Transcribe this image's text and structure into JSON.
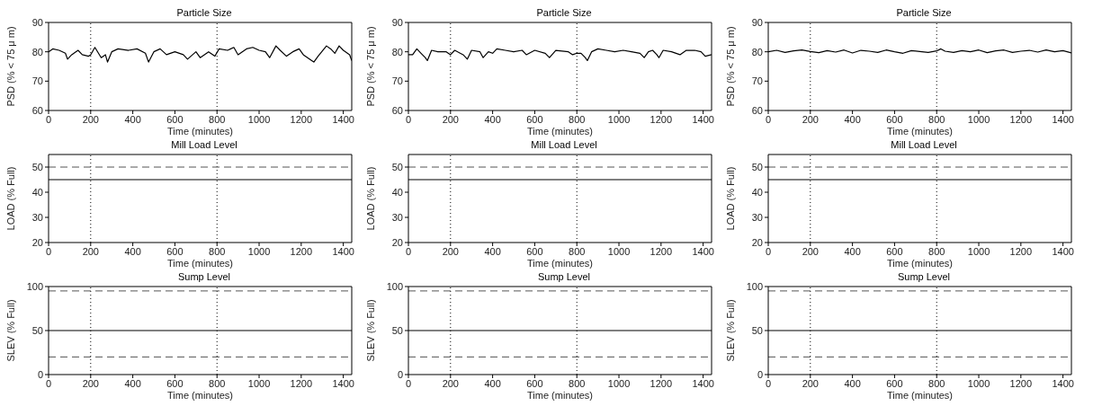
{
  "chart_data": [
    {
      "type": "line",
      "title": "Particle Size",
      "xlabel": "Time (minutes)",
      "ylabel": "PSD (% < 75 μ m)",
      "xlim": [
        0,
        1440
      ],
      "xticks": [
        0,
        200,
        400,
        600,
        800,
        1000,
        1200,
        1400
      ],
      "ylim": [
        60,
        90
      ],
      "yticks": [
        60,
        70,
        80,
        90
      ],
      "series": [
        {
          "color": "#000000",
          "x": [
            0,
            20,
            50,
            80,
            90,
            110,
            140,
            160,
            190,
            200,
            220,
            250,
            270,
            280,
            300,
            330,
            380,
            420,
            460,
            475,
            500,
            530,
            560,
            600,
            640,
            660,
            700,
            720,
            760,
            790,
            810,
            850,
            880,
            900,
            940,
            970,
            1000,
            1030,
            1050,
            1080,
            1100,
            1130,
            1160,
            1190,
            1210,
            1250,
            1260,
            1280,
            1320,
            1340,
            1360,
            1380,
            1400,
            1430,
            1440
          ],
          "values": [
            80,
            81,
            80.5,
            79.5,
            77.5,
            79,
            80.5,
            79,
            78.5,
            79,
            81.5,
            78,
            79,
            76.5,
            80,
            81,
            80.5,
            81,
            79.5,
            76.5,
            80,
            81,
            79,
            80,
            79,
            77.5,
            80,
            78,
            80,
            78.5,
            81,
            80.5,
            81.5,
            79,
            81,
            81.5,
            80.5,
            80,
            78,
            82,
            80.5,
            78.5,
            80,
            81,
            79,
            77,
            76.5,
            78.5,
            82,
            81,
            79.5,
            82,
            80.5,
            79,
            77
          ]
        }
      ],
      "ref_lines": [
        {
          "axis": "x",
          "value": 200,
          "line_style": "dotted"
        },
        {
          "axis": "x",
          "value": 800,
          "line_style": "dotted"
        }
      ]
    },
    {
      "type": "line",
      "title": "Particle Size",
      "xlabel": "Time (minutes)",
      "ylabel": "PSD (% < 75 μ m)",
      "xlim": [
        0,
        1440
      ],
      "xticks": [
        0,
        200,
        400,
        600,
        800,
        1000,
        1200,
        1400
      ],
      "ylim": [
        60,
        90
      ],
      "yticks": [
        60,
        70,
        80,
        90
      ],
      "series": [
        {
          "color": "#000000",
          "x": [
            0,
            20,
            40,
            60,
            80,
            90,
            110,
            140,
            180,
            200,
            220,
            260,
            280,
            300,
            340,
            355,
            380,
            400,
            420,
            460,
            500,
            540,
            560,
            600,
            650,
            670,
            700,
            760,
            780,
            800,
            820,
            840,
            850,
            870,
            900,
            940,
            980,
            1020,
            1060,
            1100,
            1120,
            1140,
            1160,
            1180,
            1190,
            1210,
            1250,
            1290,
            1320,
            1360,
            1390,
            1410,
            1440
          ],
          "values": [
            79,
            79,
            81,
            79.5,
            78,
            77,
            80.5,
            80,
            80,
            79,
            80.5,
            79,
            77.5,
            80.5,
            80,
            78,
            80,
            79.5,
            81,
            80.5,
            80,
            80.5,
            79,
            80.5,
            79.5,
            78,
            80.5,
            80,
            79,
            79.5,
            79.5,
            78,
            77,
            80,
            81,
            80.5,
            80,
            80.5,
            80,
            79.5,
            78,
            80,
            80.5,
            79,
            78,
            80.5,
            80,
            79,
            80.5,
            80.5,
            80,
            78.5,
            79
          ]
        }
      ],
      "ref_lines": [
        {
          "axis": "x",
          "value": 200,
          "line_style": "dotted"
        },
        {
          "axis": "x",
          "value": 800,
          "line_style": "dotted"
        }
      ]
    },
    {
      "type": "line",
      "title": "Particle Size",
      "xlabel": "Time (minutes)",
      "ylabel": "PSD (% < 75 μ m)",
      "xlim": [
        0,
        1440
      ],
      "xticks": [
        0,
        200,
        400,
        600,
        800,
        1000,
        1200,
        1400
      ],
      "ylim": [
        60,
        90
      ],
      "yticks": [
        60,
        70,
        80,
        90
      ],
      "series": [
        {
          "color": "#000000",
          "x": [
            0,
            40,
            80,
            120,
            160,
            200,
            240,
            280,
            320,
            360,
            400,
            440,
            480,
            520,
            560,
            600,
            640,
            680,
            720,
            760,
            800,
            820,
            840,
            880,
            920,
            960,
            1000,
            1040,
            1080,
            1120,
            1160,
            1200,
            1240,
            1280,
            1320,
            1360,
            1400,
            1440
          ],
          "values": [
            80,
            80.5,
            79.8,
            80.3,
            80.6,
            80.1,
            79.7,
            80.4,
            79.9,
            80.6,
            79.6,
            80.5,
            80.2,
            79.8,
            80.6,
            80,
            79.5,
            80.4,
            80.1,
            79.8,
            80.3,
            81,
            80.2,
            79.8,
            80.4,
            80,
            80.6,
            79.7,
            80.3,
            80.6,
            79.8,
            80.2,
            80.5,
            79.9,
            80.6,
            80,
            80.4,
            79.6
          ]
        }
      ],
      "ref_lines": [
        {
          "axis": "x",
          "value": 200,
          "line_style": "dotted"
        },
        {
          "axis": "x",
          "value": 800,
          "line_style": "dotted"
        }
      ]
    },
    {
      "type": "line",
      "title": "Mill Load Level",
      "xlabel": "Time (minutes)",
      "ylabel": "LOAD (% Full)",
      "xlim": [
        0,
        1440
      ],
      "xticks": [
        0,
        200,
        400,
        600,
        800,
        1000,
        1200,
        1400
      ],
      "ylim": [
        20,
        55
      ],
      "yticks": [
        20,
        30,
        40,
        50
      ],
      "series": [
        {
          "color": "#000000",
          "x": [
            0,
            360,
            720,
            1080,
            1440
          ],
          "values": [
            45,
            45,
            45,
            45,
            45
          ]
        }
      ],
      "ref_lines": [
        {
          "axis": "x",
          "value": 200,
          "line_style": "dotted"
        },
        {
          "axis": "x",
          "value": 800,
          "line_style": "dotted"
        },
        {
          "axis": "y",
          "value": 50,
          "line_style": "dashed"
        }
      ]
    },
    {
      "type": "line",
      "title": "Mill Load Level",
      "xlabel": "Time (minutes)",
      "ylabel": "LOAD (% Full)",
      "xlim": [
        0,
        1440
      ],
      "xticks": [
        0,
        200,
        400,
        600,
        800,
        1000,
        1200,
        1400
      ],
      "ylim": [
        20,
        55
      ],
      "yticks": [
        20,
        30,
        40,
        50
      ],
      "series": [
        {
          "color": "#000000",
          "x": [
            0,
            360,
            720,
            1080,
            1440
          ],
          "values": [
            45,
            45,
            45,
            45,
            45
          ]
        }
      ],
      "ref_lines": [
        {
          "axis": "x",
          "value": 200,
          "line_style": "dotted"
        },
        {
          "axis": "x",
          "value": 800,
          "line_style": "dotted"
        },
        {
          "axis": "y",
          "value": 50,
          "line_style": "dashed"
        }
      ]
    },
    {
      "type": "line",
      "title": "Mill Load Level",
      "xlabel": "Time (minutes)",
      "ylabel": "LOAD (% Full)",
      "xlim": [
        0,
        1440
      ],
      "xticks": [
        0,
        200,
        400,
        600,
        800,
        1000,
        1200,
        1400
      ],
      "ylim": [
        20,
        55
      ],
      "yticks": [
        20,
        30,
        40,
        50
      ],
      "series": [
        {
          "color": "#000000",
          "x": [
            0,
            360,
            720,
            1080,
            1440
          ],
          "values": [
            45,
            45,
            45,
            45,
            45
          ]
        }
      ],
      "ref_lines": [
        {
          "axis": "x",
          "value": 200,
          "line_style": "dotted"
        },
        {
          "axis": "x",
          "value": 800,
          "line_style": "dotted"
        },
        {
          "axis": "y",
          "value": 50,
          "line_style": "dashed"
        }
      ]
    },
    {
      "type": "line",
      "title": "Sump Level",
      "xlabel": "Time (minutes)",
      "ylabel": "SLEV (% Full)",
      "xlim": [
        0,
        1440
      ],
      "xticks": [
        0,
        200,
        400,
        600,
        800,
        1000,
        1200,
        1400
      ],
      "ylim": [
        0,
        100
      ],
      "yticks": [
        0,
        50,
        100
      ],
      "series": [
        {
          "color": "#000000",
          "x": [
            0,
            360,
            720,
            1080,
            1440
          ],
          "values": [
            50,
            50,
            50,
            50,
            50
          ]
        }
      ],
      "ref_lines": [
        {
          "axis": "x",
          "value": 200,
          "line_style": "dotted"
        },
        {
          "axis": "x",
          "value": 800,
          "line_style": "dotted"
        },
        {
          "axis": "y",
          "value": 95,
          "line_style": "dashed"
        },
        {
          "axis": "y",
          "value": 20,
          "line_style": "dashed"
        }
      ]
    },
    {
      "type": "line",
      "title": "Sump Level",
      "xlabel": "Time (minutes)",
      "ylabel": "SLEV (% Full)",
      "xlim": [
        0,
        1440
      ],
      "xticks": [
        0,
        200,
        400,
        600,
        800,
        1000,
        1200,
        1400
      ],
      "ylim": [
        0,
        100
      ],
      "yticks": [
        0,
        50,
        100
      ],
      "series": [
        {
          "color": "#000000",
          "x": [
            0,
            360,
            720,
            1080,
            1440
          ],
          "values": [
            50,
            50,
            50,
            50,
            50
          ]
        }
      ],
      "ref_lines": [
        {
          "axis": "x",
          "value": 200,
          "line_style": "dotted"
        },
        {
          "axis": "x",
          "value": 800,
          "line_style": "dotted"
        },
        {
          "axis": "y",
          "value": 95,
          "line_style": "dashed"
        },
        {
          "axis": "y",
          "value": 20,
          "line_style": "dashed"
        }
      ]
    },
    {
      "type": "line",
      "title": "Sump Level",
      "xlabel": "Time (minutes)",
      "ylabel": "SLEV (% Full)",
      "xlim": [
        0,
        1440
      ],
      "xticks": [
        0,
        200,
        400,
        600,
        800,
        1000,
        1200,
        1400
      ],
      "ylim": [
        0,
        100
      ],
      "yticks": [
        0,
        50,
        100
      ],
      "series": [
        {
          "color": "#000000",
          "x": [
            0,
            360,
            720,
            1080,
            1440
          ],
          "values": [
            50,
            50,
            50,
            50,
            50
          ]
        }
      ],
      "ref_lines": [
        {
          "axis": "x",
          "value": 200,
          "line_style": "dotted"
        },
        {
          "axis": "x",
          "value": 800,
          "line_style": "dotted"
        },
        {
          "axis": "y",
          "value": 95,
          "line_style": "dashed"
        },
        {
          "axis": "y",
          "value": 20,
          "line_style": "dashed"
        }
      ]
    }
  ]
}
